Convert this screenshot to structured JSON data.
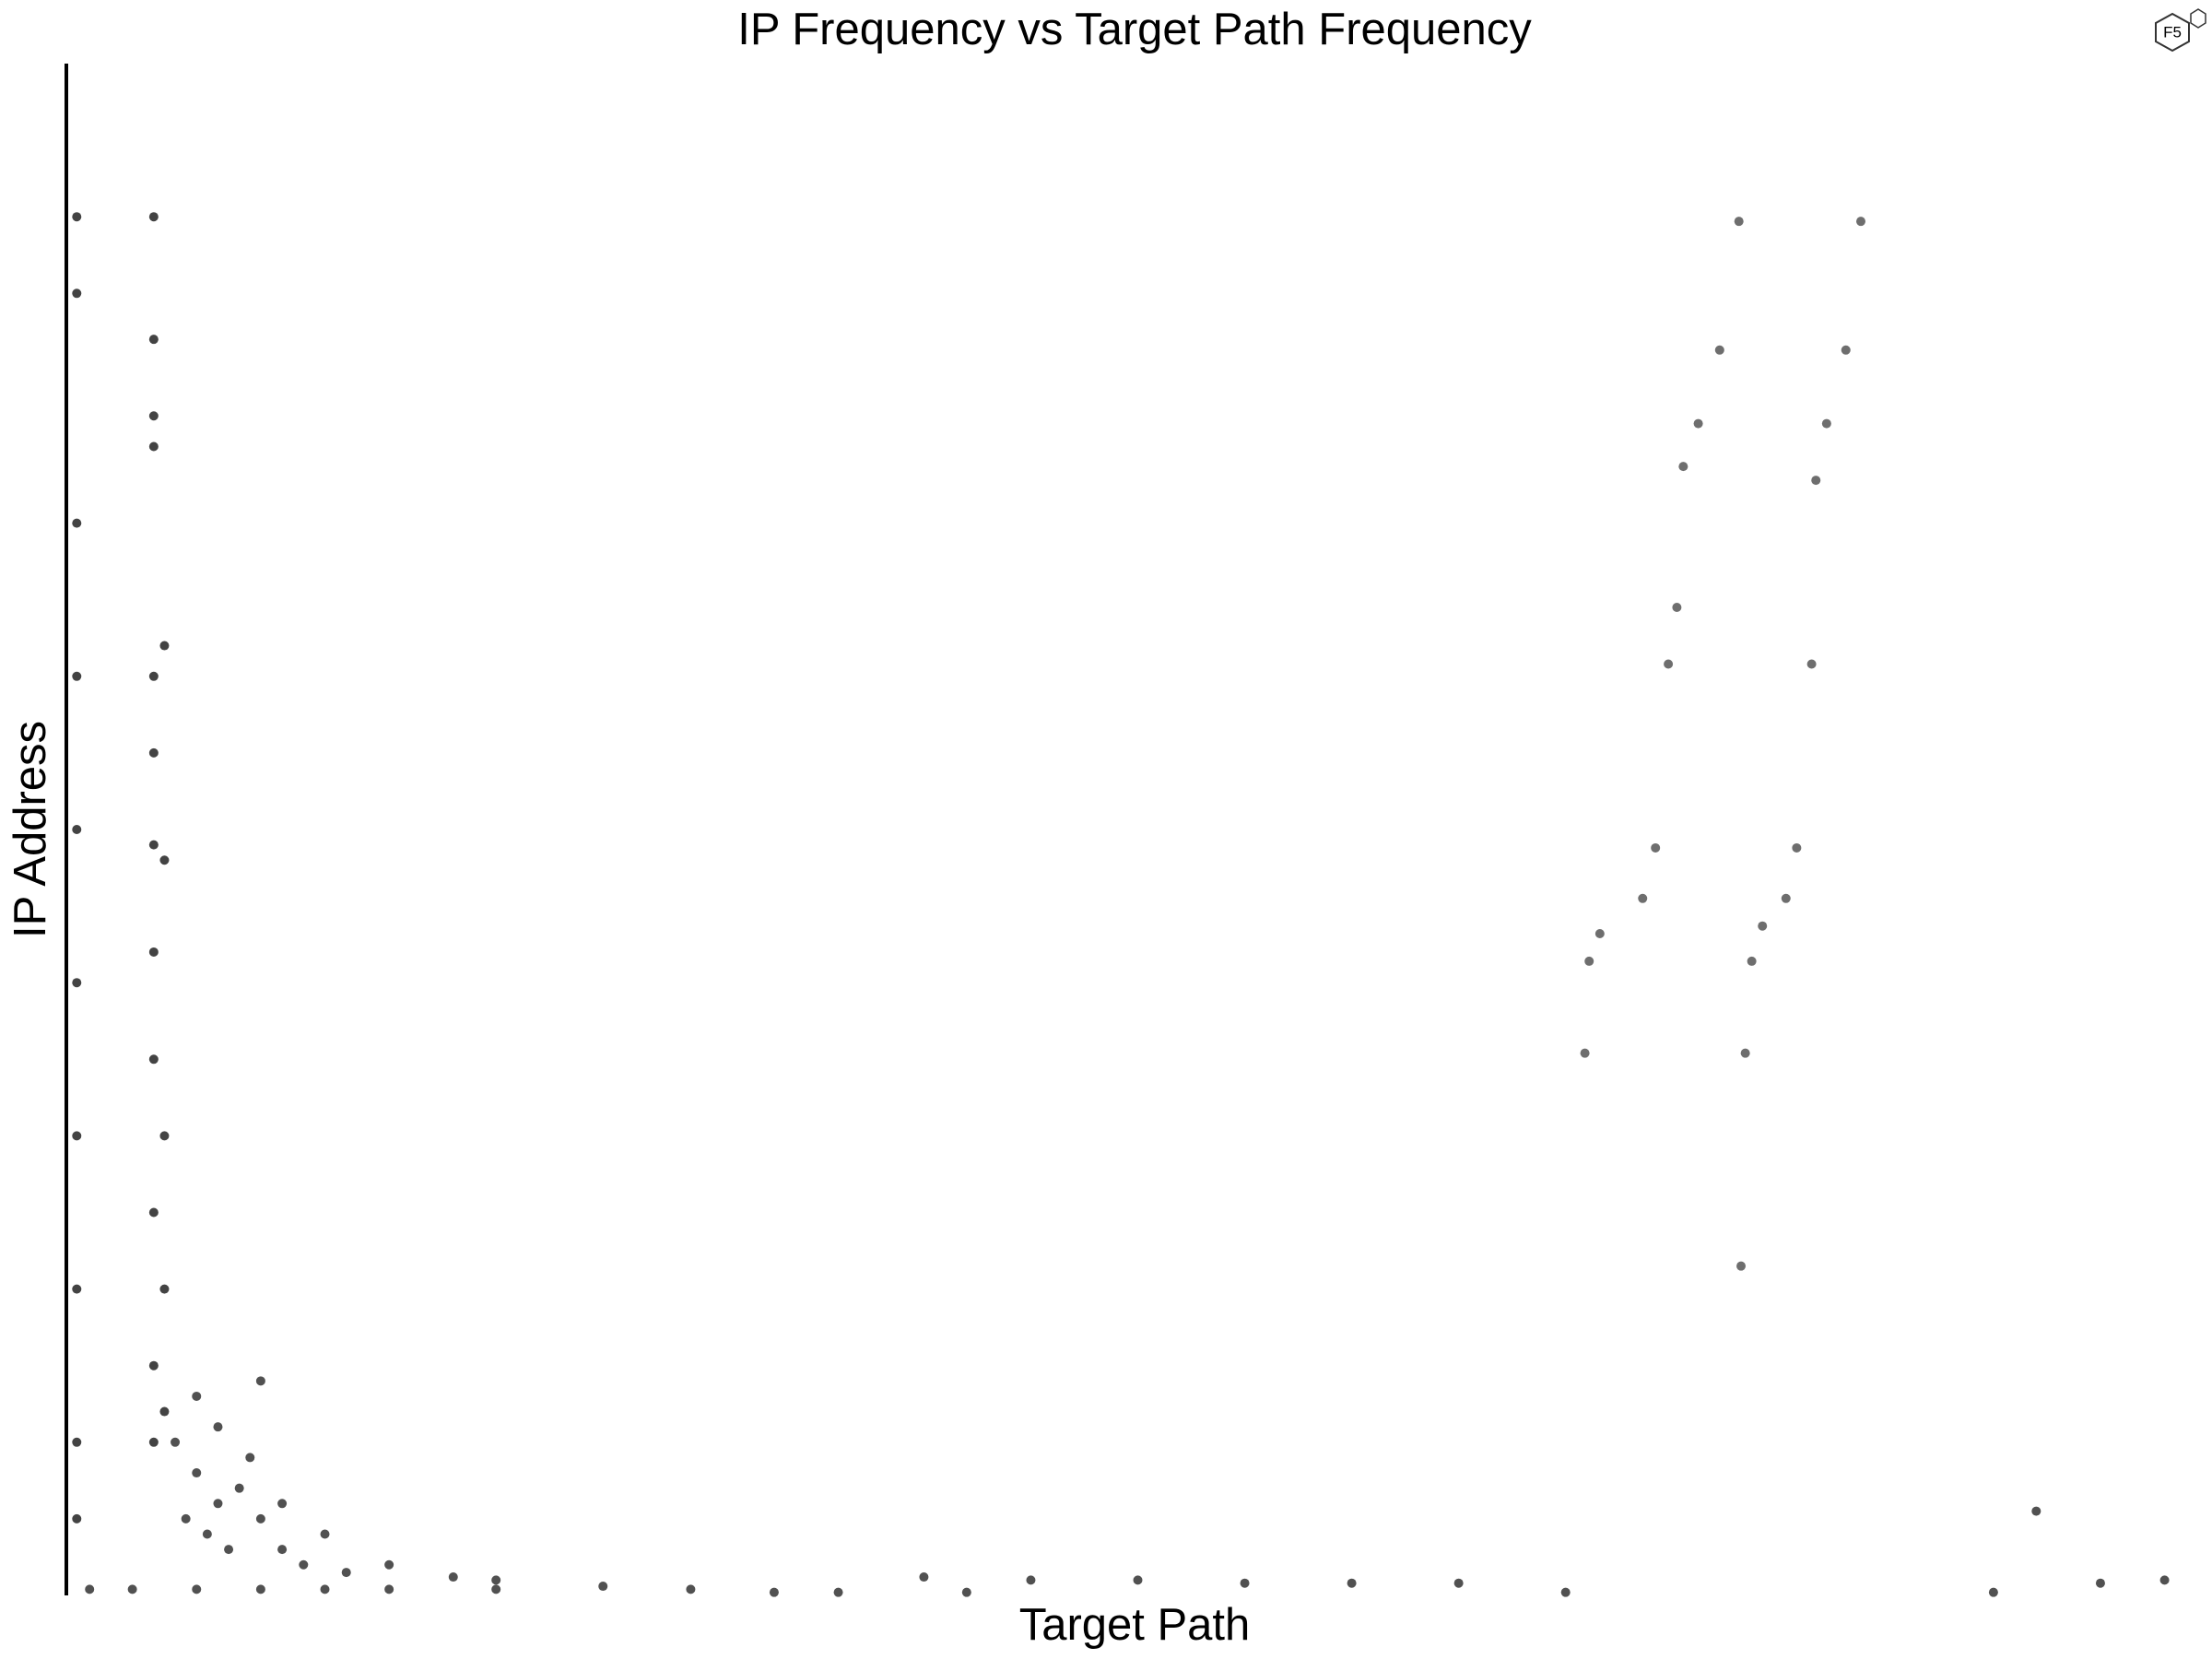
{
  "logo": "F5",
  "chart_data": {
    "type": "scatter",
    "title": "IP Frequency vs Target Path Frequency",
    "xlabel": "Target Path",
    "ylabel": "IP Address",
    "xlim": [
      0,
      1
    ],
    "ylim": [
      0,
      1
    ],
    "series": [
      {
        "color": "#555555",
        "x": [
          0.781,
          0.772,
          0.762,
          0.755,
          0.752,
          0.748,
          0.742,
          0.736,
          0.716,
          0.711,
          0.709
        ],
        "y": [
          0.897,
          0.813,
          0.765,
          0.737,
          0.645,
          0.608,
          0.488,
          0.455,
          0.432,
          0.414,
          0.354
        ]
      },
      {
        "color": "#555555",
        "x": [
          0.838,
          0.831,
          0.822,
          0.817,
          0.815,
          0.808,
          0.803,
          0.792,
          0.787,
          0.784,
          0.782
        ],
        "y": [
          0.897,
          0.813,
          0.765,
          0.728,
          0.608,
          0.488,
          0.455,
          0.437,
          0.414,
          0.354,
          0.215
        ]
      },
      {
        "color": "#222222",
        "x": [
          0.004,
          0.004,
          0.004,
          0.004,
          0.004,
          0.004,
          0.004,
          0.004,
          0.004,
          0.004,
          0.04,
          0.04,
          0.04,
          0.04,
          0.04,
          0.04,
          0.04,
          0.04,
          0.04,
          0.04,
          0.04,
          0.04,
          0.045,
          0.045,
          0.045,
          0.045,
          0.045
        ],
        "y": [
          0.9,
          0.85,
          0.7,
          0.6,
          0.5,
          0.4,
          0.3,
          0.2,
          0.1,
          0.05,
          0.9,
          0.82,
          0.77,
          0.75,
          0.6,
          0.55,
          0.49,
          0.42,
          0.35,
          0.25,
          0.15,
          0.1,
          0.62,
          0.48,
          0.3,
          0.2,
          0.12
        ]
      },
      {
        "color": "#333333",
        "x": [
          0.05,
          0.06,
          0.07,
          0.055,
          0.065,
          0.075,
          0.08,
          0.09,
          0.1,
          0.06,
          0.07,
          0.085,
          0.11,
          0.12,
          0.13,
          0.15,
          0.18,
          0.2,
          0.09,
          0.1
        ],
        "y": [
          0.1,
          0.08,
          0.06,
          0.05,
          0.04,
          0.03,
          0.07,
          0.05,
          0.03,
          0.13,
          0.11,
          0.09,
          0.02,
          0.04,
          0.015,
          0.02,
          0.012,
          0.01,
          0.14,
          0.06
        ]
      },
      {
        "color": "#333333",
        "x": [
          0.01,
          0.03,
          0.06,
          0.09,
          0.12,
          0.15,
          0.2,
          0.25,
          0.291,
          0.33,
          0.36,
          0.4,
          0.42,
          0.45,
          0.5,
          0.55,
          0.6,
          0.65,
          0.7,
          0.9,
          0.92,
          0.95,
          0.98
        ],
        "y": [
          0.004,
          0.004,
          0.004,
          0.004,
          0.004,
          0.004,
          0.004,
          0.006,
          0.004,
          0.002,
          0.002,
          0.012,
          0.002,
          0.01,
          0.01,
          0.008,
          0.008,
          0.008,
          0.002,
          0.002,
          0.055,
          0.008,
          0.01
        ]
      }
    ]
  }
}
